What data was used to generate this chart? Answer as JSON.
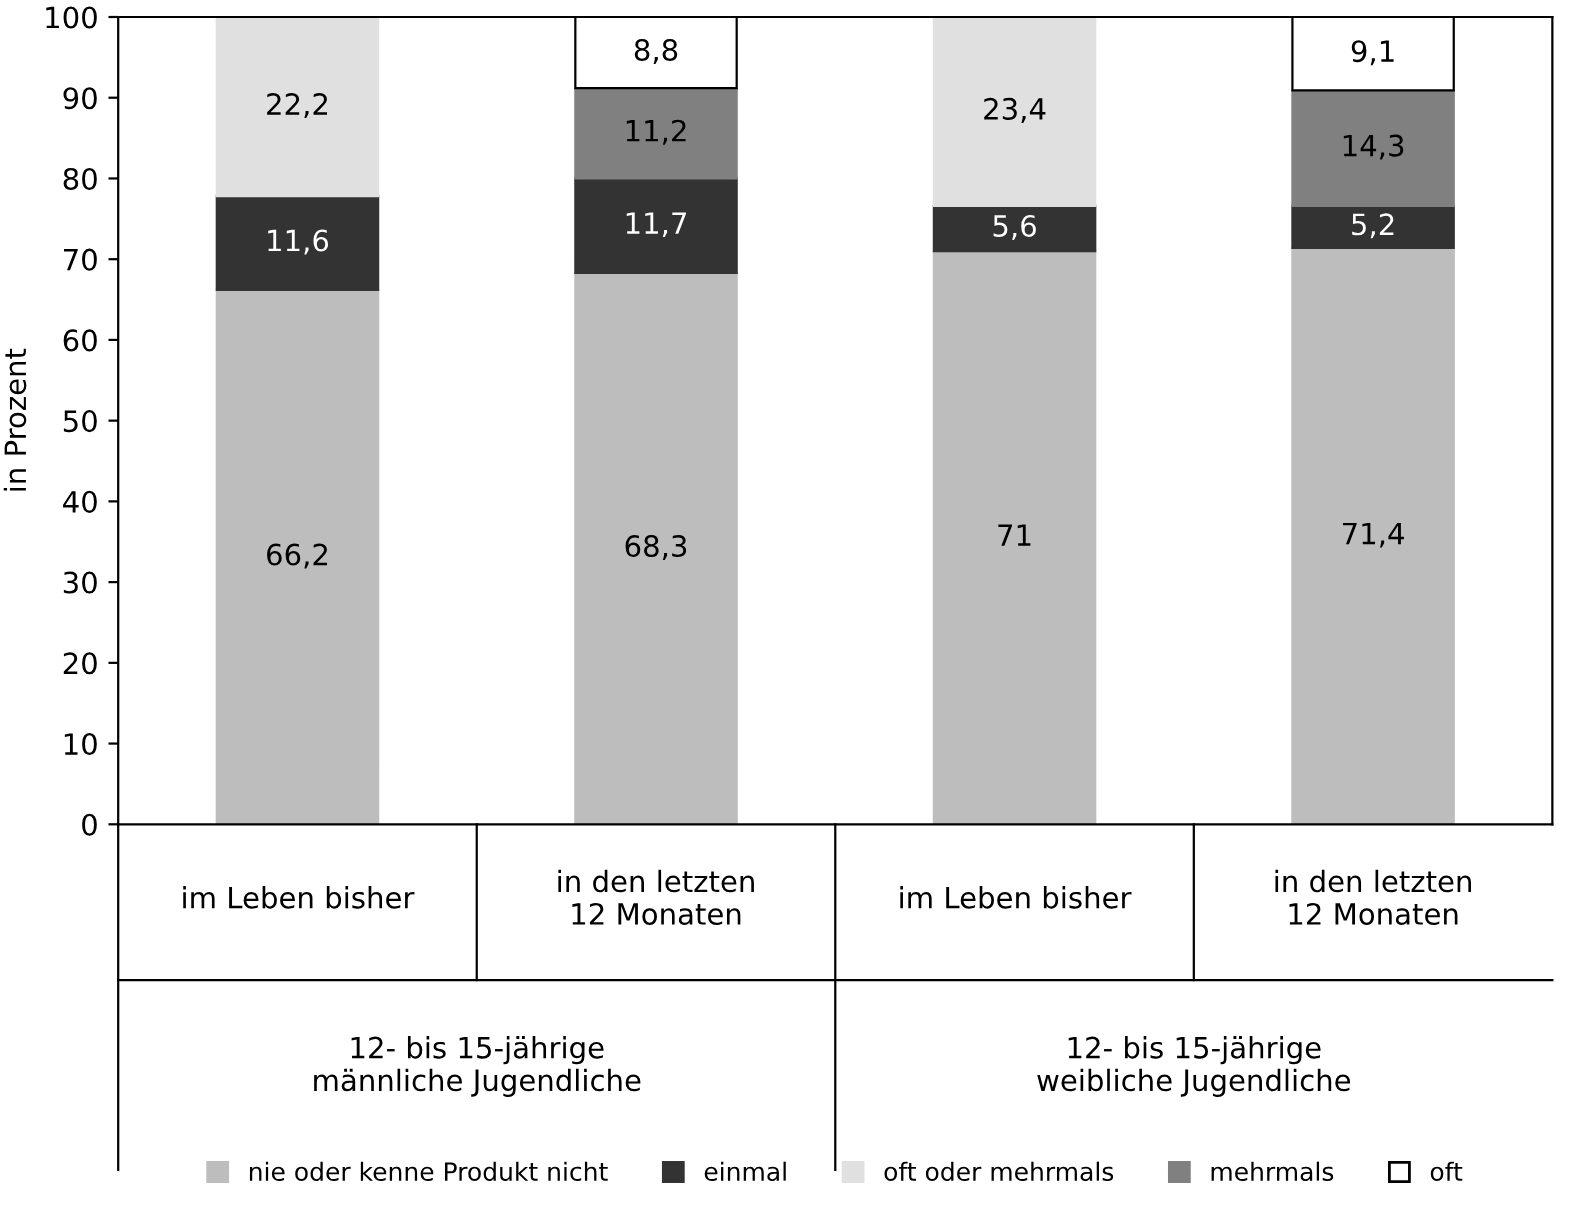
{
  "chart_data": {
    "type": "bar",
    "stacked": true,
    "ylabel": "in Prozent",
    "categories": [
      "im Leben bisher",
      "in den letzten\n12 Monaten",
      "im Leben bisher",
      "in den letzten\n12 Monaten"
    ],
    "series": [
      {
        "name": "nie oder kenne Produkt nicht",
        "color": "#bdbdbd",
        "values": [
          66.2,
          68.3,
          71,
          71.4
        ],
        "value_labels": [
          "66,2",
          "68,3",
          "71",
          "71,4"
        ]
      },
      {
        "name": "einmal",
        "color": "#333333",
        "values": [
          11.6,
          11.7,
          5.6,
          5.2
        ],
        "value_labels": [
          "11,6",
          "11,7",
          "5,6",
          "5,2"
        ]
      },
      {
        "name": "oft oder mehrmals",
        "color": "#e0e0e0",
        "values": [
          22.2,
          null,
          23.4,
          null
        ],
        "value_labels": [
          "22,2",
          null,
          "23,4",
          null
        ]
      },
      {
        "name": "mehrmals",
        "color": "#808080",
        "values": [
          null,
          11.2,
          null,
          14.3
        ],
        "value_labels": [
          null,
          "11,2",
          null,
          "14,3"
        ]
      },
      {
        "name": "oft",
        "color": "#ffffff",
        "values": [
          null,
          8.8,
          null,
          9.1
        ],
        "value_labels": [
          null,
          "8,8",
          null,
          "9,1"
        ]
      }
    ],
    "annotations": [
      "12- bis 15-jährige\nmännliche Jugendliche",
      "12- bis 15-jährige\nweibliche Jugendliche"
    ],
    "ylim": [
      0,
      100
    ],
    "yticks": [
      0,
      10,
      20,
      30,
      40,
      50,
      60,
      70,
      80,
      90,
      100
    ],
    "grid": false,
    "legend": "bottom"
  }
}
